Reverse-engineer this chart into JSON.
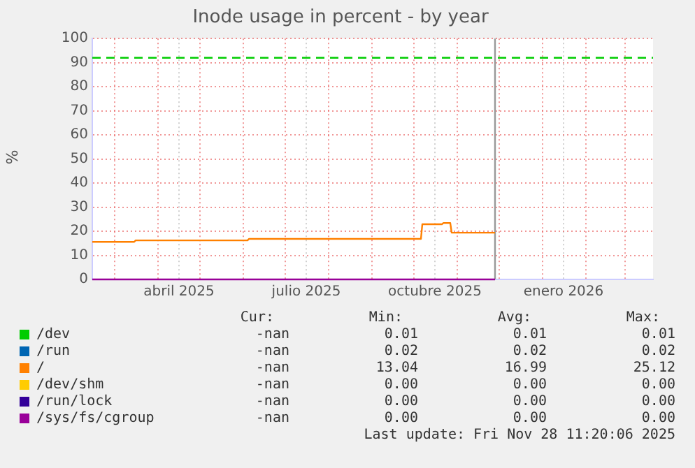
{
  "chart_data": {
    "type": "line",
    "title": "Inode usage in percent - by year",
    "ylabel": "%",
    "xlim": [
      "2025-02-13",
      "2026-03-21"
    ],
    "xticks": [
      {
        "value": "2025-03-01",
        "label": null
      },
      {
        "value": "2025-04-01",
        "label": null
      },
      {
        "value": "2025-04-16",
        "label": "abril 2025"
      },
      {
        "value": "2025-05-01",
        "label": null
      },
      {
        "value": "2025-06-01",
        "label": null
      },
      {
        "value": "2025-07-01",
        "label": null
      },
      {
        "value": "2025-07-16",
        "label": "julio 2025"
      },
      {
        "value": "2025-08-01",
        "label": null
      },
      {
        "value": "2025-09-01",
        "label": null
      },
      {
        "value": "2025-10-01",
        "label": null
      },
      {
        "value": "2025-10-16",
        "label": "octubre 2025"
      },
      {
        "value": "2025-11-01",
        "label": null
      },
      {
        "value": "2025-12-01",
        "label": null
      },
      {
        "value": "2026-01-01",
        "label": null
      },
      {
        "value": "2026-01-16",
        "label": "enero 2026"
      },
      {
        "value": "2026-02-01",
        "label": null
      },
      {
        "value": "2026-03-01",
        "label": null
      }
    ],
    "ylim": [
      0,
      100
    ],
    "yticks": [
      0,
      10,
      20,
      30,
      40,
      50,
      60,
      70,
      80,
      90,
      100
    ],
    "grid": true,
    "legend": "bottom",
    "marker": "none",
    "ref_lines": [
      {
        "axis": "y",
        "value": 92,
        "color": "#00cc00",
        "line_style": "dashed"
      },
      {
        "axis": "x",
        "value": "2025-11-28",
        "color": "#999999",
        "line_style": "solid"
      }
    ],
    "series": [
      {
        "name": "/dev",
        "color": "#00cc00"
      },
      {
        "name": "/run",
        "color": "#0066b3"
      },
      {
        "name": "/",
        "color": "#ff8000",
        "x": [
          "2025-02-13",
          "2025-03-15",
          "2025-03-16",
          "2025-06-04",
          "2025-06-05",
          "2025-10-06",
          "2025-10-07",
          "2025-10-21",
          "2025-10-22",
          "2025-10-27",
          "2025-10-28",
          "2025-11-28"
        ],
        "values": [
          15.6,
          15.6,
          16.2,
          16.2,
          16.8,
          16.8,
          22.9,
          22.9,
          23.4,
          23.4,
          19.4,
          19.4
        ]
      },
      {
        "name": "/dev/shm",
        "color": "#ffcc00"
      },
      {
        "name": "/run/lock",
        "color": "#330099"
      },
      {
        "name": "/sys/fs/cgroup",
        "color": "#990099",
        "x": [
          "2025-02-13",
          "2025-11-28"
        ],
        "values": [
          0,
          0
        ]
      }
    ],
    "annotations": [
      "Cur:",
      "Min:",
      "Avg:",
      "Max:",
      "-nan",
      "0.01",
      "0.01",
      "0.01",
      "-nan",
      "0.02",
      "0.02",
      "0.02",
      "-nan",
      "13.04",
      "16.99",
      "25.12",
      "-nan",
      "0.00",
      "0.00",
      "0.00",
      "-nan",
      "0.00",
      "0.00",
      "0.00",
      "-nan",
      "0.00",
      "0.00",
      "0.00",
      "Last update: Fri Nov 28 11:20:06 2025"
    ]
  }
}
